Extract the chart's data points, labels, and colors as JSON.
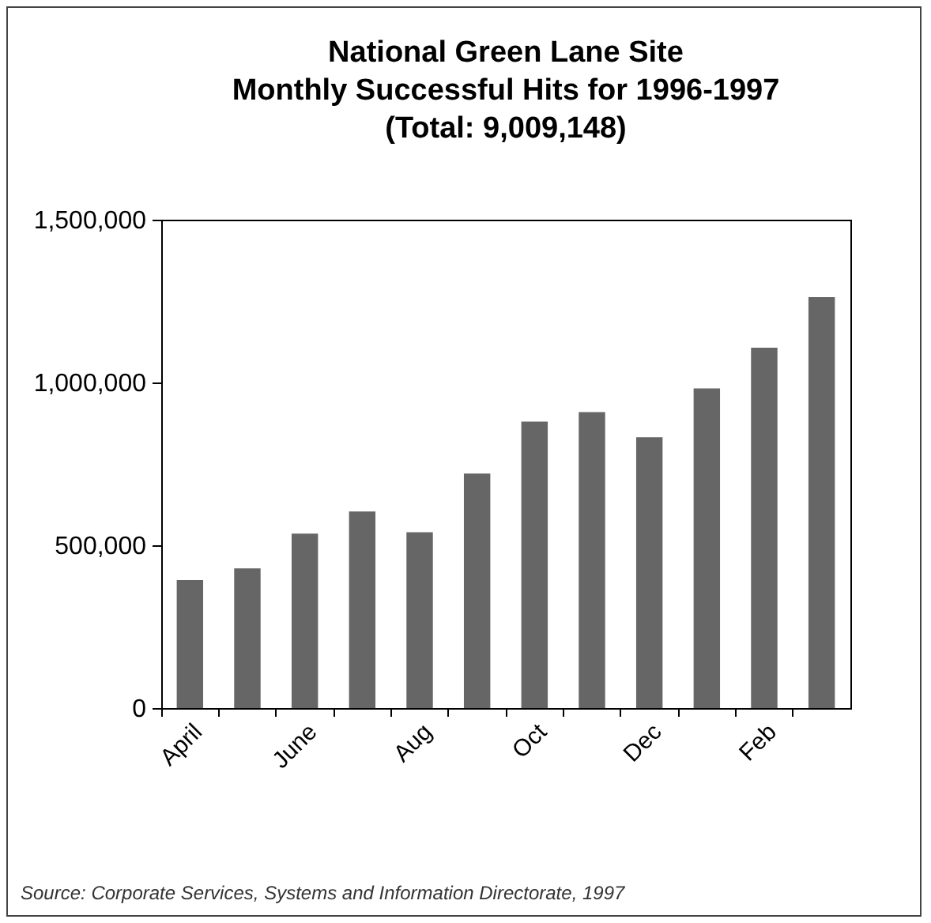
{
  "chart_data": {
    "type": "bar",
    "title": "National Green Lane Site\nMonthly Successful Hits for 1996-1997\n(Total: 9,009,148)",
    "categories": [
      "April",
      null,
      "June",
      null,
      "Aug",
      null,
      "Oct",
      null,
      "Dec",
      null,
      "Feb",
      null
    ],
    "values": [
      393000,
      429000,
      536000,
      604000,
      540000,
      720000,
      880000,
      909000,
      832000,
      982000,
      1107000,
      1262000
    ],
    "color": "#666666",
    "ylim": [
      0,
      1500000
    ],
    "yticks": [
      {
        "value": 0,
        "label": "0"
      },
      {
        "value": 500000,
        "label": "500,000"
      },
      {
        "value": 1000000,
        "label": "1,000,000"
      },
      {
        "value": 1500000,
        "label": "1,500,000"
      }
    ],
    "grid": false,
    "annotations": [
      "Source: Corporate Services, Systems and Information Directorate, 1997"
    ]
  }
}
